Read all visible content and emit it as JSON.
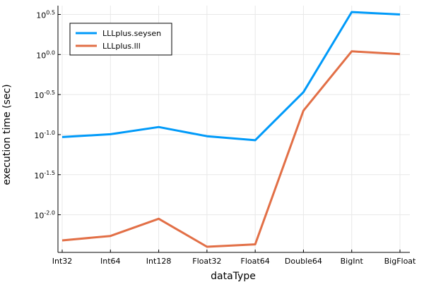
{
  "chart_data": {
    "type": "line",
    "xlabel": "dataType",
    "ylabel": "execution time (sec)",
    "categories": [
      "Int32",
      "Int64",
      "Int128",
      "Float32",
      "Float64",
      "Double64",
      "BigInt",
      "BigFloat"
    ],
    "y_scale": "log10",
    "ylim_log10": [
      -2.47,
      0.61
    ],
    "y_ticks_log10": [
      "-2.0",
      "-1.5",
      "-1.0",
      "-0.5",
      "0.0",
      "0.5"
    ],
    "y_tick_base": "10",
    "grid": true,
    "legend_position": "top-left",
    "series": [
      {
        "name": "LLLplus.seysen",
        "color": "#009af9",
        "values_log10": [
          -1.03,
          -0.995,
          -0.905,
          -1.02,
          -1.07,
          -0.47,
          0.53,
          0.5
        ]
      },
      {
        "name": "LLLplus.lll",
        "color": "#e26f46",
        "values_log10": [
          -2.32,
          -2.265,
          -2.05,
          -2.4,
          -2.37,
          -0.7,
          0.04,
          0.005
        ]
      }
    ]
  }
}
